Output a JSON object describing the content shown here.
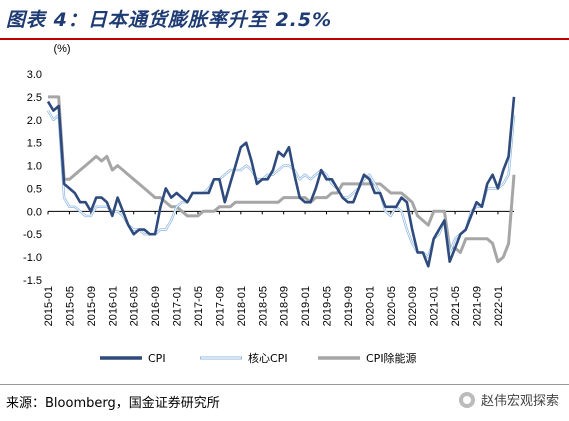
{
  "figure": {
    "title": "图表 4：日本通货膨胀率升至 2.5%",
    "source": "来源：Bloomberg，国金证券研究所",
    "watermark": "赵伟宏观探索",
    "watermark_icon": "wechat-icon"
  },
  "chart_data": {
    "type": "line",
    "unit_label": "(%)",
    "ylim": [
      -1.5,
      3.0
    ],
    "y_ticks": [
      "3.0",
      "2.5",
      "2.0",
      "1.5",
      "1.0",
      "0.5",
      "0.0",
      "-0.5",
      "-1.0",
      "-1.5"
    ],
    "x_ticks": [
      "2015-01",
      "2015-05",
      "2015-09",
      "2016-01",
      "2016-05",
      "2016-09",
      "2017-01",
      "2017-05",
      "2017-09",
      "2018-01",
      "2018-05",
      "2018-09",
      "2019-01",
      "2019-05",
      "2019-09",
      "2020-01",
      "2020-05",
      "2020-09",
      "2021-01",
      "2021-05",
      "2021-09",
      "2022-01"
    ],
    "start_month": "2015-01",
    "end_month": "2022-04",
    "grid": false,
    "legend_position": "bottom",
    "series": [
      {
        "name": "CPI",
        "color": "#2f4a7c",
        "values": [
          2.4,
          2.2,
          2.3,
          0.6,
          0.5,
          0.4,
          0.2,
          0.2,
          0.0,
          0.3,
          0.3,
          0.2,
          -0.1,
          0.3,
          0.0,
          -0.3,
          -0.5,
          -0.4,
          -0.4,
          -0.5,
          -0.5,
          0.1,
          0.5,
          0.3,
          0.4,
          0.3,
          0.2,
          0.4,
          0.4,
          0.4,
          0.4,
          0.7,
          0.7,
          0.2,
          0.6,
          1.0,
          1.4,
          1.5,
          1.1,
          0.6,
          0.7,
          0.7,
          0.9,
          1.3,
          1.2,
          1.4,
          0.8,
          0.3,
          0.2,
          0.2,
          0.5,
          0.9,
          0.7,
          0.7,
          0.5,
          0.3,
          0.2,
          0.2,
          0.5,
          0.8,
          0.7,
          0.4,
          0.4,
          0.1,
          0.1,
          0.1,
          0.3,
          0.2,
          -0.4,
          -0.9,
          -0.9,
          -1.2,
          -0.6,
          -0.4,
          -0.2,
          -1.1,
          -0.8,
          -0.5,
          -0.4,
          -0.1,
          0.2,
          0.1,
          0.6,
          0.8,
          0.5,
          0.9,
          1.2,
          2.5
        ]
      },
      {
        "name": "核心CPI",
        "color": "#8fb8e0",
        "values": [
          2.2,
          2.0,
          2.1,
          0.3,
          0.1,
          0.1,
          0.0,
          -0.1,
          -0.1,
          0.1,
          0.1,
          0.1,
          0.0,
          0.0,
          -0.1,
          -0.3,
          -0.4,
          -0.4,
          -0.5,
          -0.5,
          -0.5,
          -0.4,
          -0.4,
          -0.2,
          0.1,
          0.2,
          0.2,
          0.4,
          0.4,
          0.4,
          0.5,
          0.7,
          0.7,
          0.8,
          0.9,
          0.9,
          0.9,
          1.0,
          0.9,
          0.7,
          0.7,
          0.8,
          0.8,
          0.9,
          1.0,
          1.0,
          0.9,
          0.7,
          0.8,
          0.7,
          0.8,
          0.9,
          0.8,
          0.6,
          0.5,
          0.3,
          0.3,
          0.4,
          0.5,
          0.7,
          0.8,
          0.6,
          0.4,
          0.0,
          -0.1,
          0.1,
          0.0,
          -0.4,
          -0.7,
          -0.9,
          -0.9,
          -1.0,
          -0.6,
          -0.5,
          -0.2,
          -0.9,
          -0.6,
          -0.5,
          -0.4,
          0.0,
          0.1,
          0.1,
          0.5,
          0.5,
          0.5,
          0.6,
          0.8,
          2.1
        ]
      },
      {
        "name": "CPI除能源",
        "color": "#a6a6a6",
        "values": [
          2.5,
          2.5,
          2.5,
          0.7,
          0.7,
          0.8,
          0.9,
          1.0,
          1.1,
          1.2,
          1.1,
          1.2,
          0.9,
          1.0,
          0.9,
          0.8,
          0.7,
          0.6,
          0.5,
          0.4,
          0.3,
          0.3,
          0.2,
          0.1,
          0.1,
          0.0,
          -0.1,
          -0.1,
          -0.1,
          0.0,
          0.0,
          0.0,
          0.1,
          0.1,
          0.1,
          0.2,
          0.2,
          0.2,
          0.2,
          0.2,
          0.2,
          0.2,
          0.2,
          0.2,
          0.3,
          0.3,
          0.3,
          0.3,
          0.3,
          0.2,
          0.3,
          0.3,
          0.3,
          0.4,
          0.4,
          0.6,
          0.6,
          0.6,
          0.6,
          0.6,
          0.6,
          0.6,
          0.6,
          0.5,
          0.4,
          0.4,
          0.4,
          0.3,
          0.2,
          -0.1,
          -0.2,
          -0.3,
          0.0,
          0.0,
          0.0,
          -0.8,
          -0.8,
          -0.9,
          -0.6,
          -0.6,
          -0.6,
          -0.6,
          -0.6,
          -0.7,
          -1.1,
          -1.0,
          -0.7,
          0.8
        ]
      }
    ]
  }
}
